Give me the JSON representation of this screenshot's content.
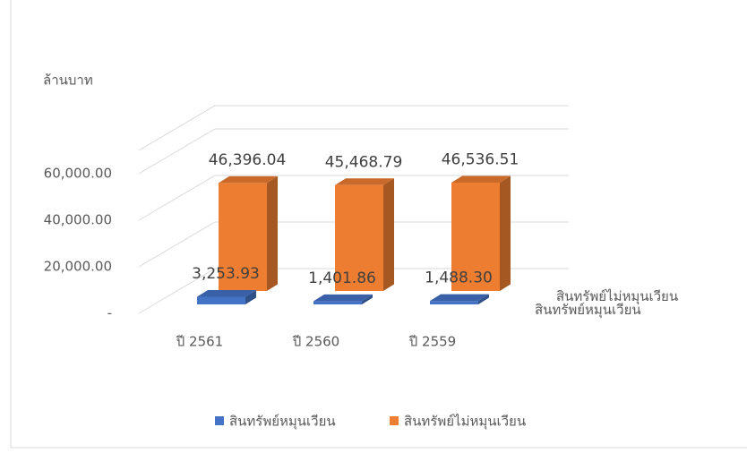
{
  "chart_data": {
    "type": "bar3d",
    "y_label": "ล้านบาท",
    "categories": [
      "ปี 2561",
      "ปี 2560",
      "ปี 2559"
    ],
    "series": [
      {
        "name": "สินทรัพย์หมุนเวียน",
        "color": "#4472c4",
        "values": [
          3253.93,
          1401.86,
          1488.3
        ],
        "value_labels": [
          "3,253.93",
          "1,401.86",
          "1,488.30"
        ]
      },
      {
        "name": "สินทรัพย์ไม่หมุนเวียน",
        "color": "#ed7d31",
        "values": [
          46396.04,
          45468.79,
          46536.51
        ],
        "value_labels": [
          "46,396.04",
          "45,468.79",
          "46,536.51"
        ]
      }
    ],
    "ylim": [
      0,
      70000
    ],
    "yticks": [
      {
        "value": 0,
        "label": "-"
      },
      {
        "value": 20000,
        "label": "20,000.00"
      },
      {
        "value": 40000,
        "label": "40,000.00"
      },
      {
        "value": 60000,
        "label": "60,000.00"
      }
    ],
    "grid": true,
    "legend": "bottom"
  }
}
